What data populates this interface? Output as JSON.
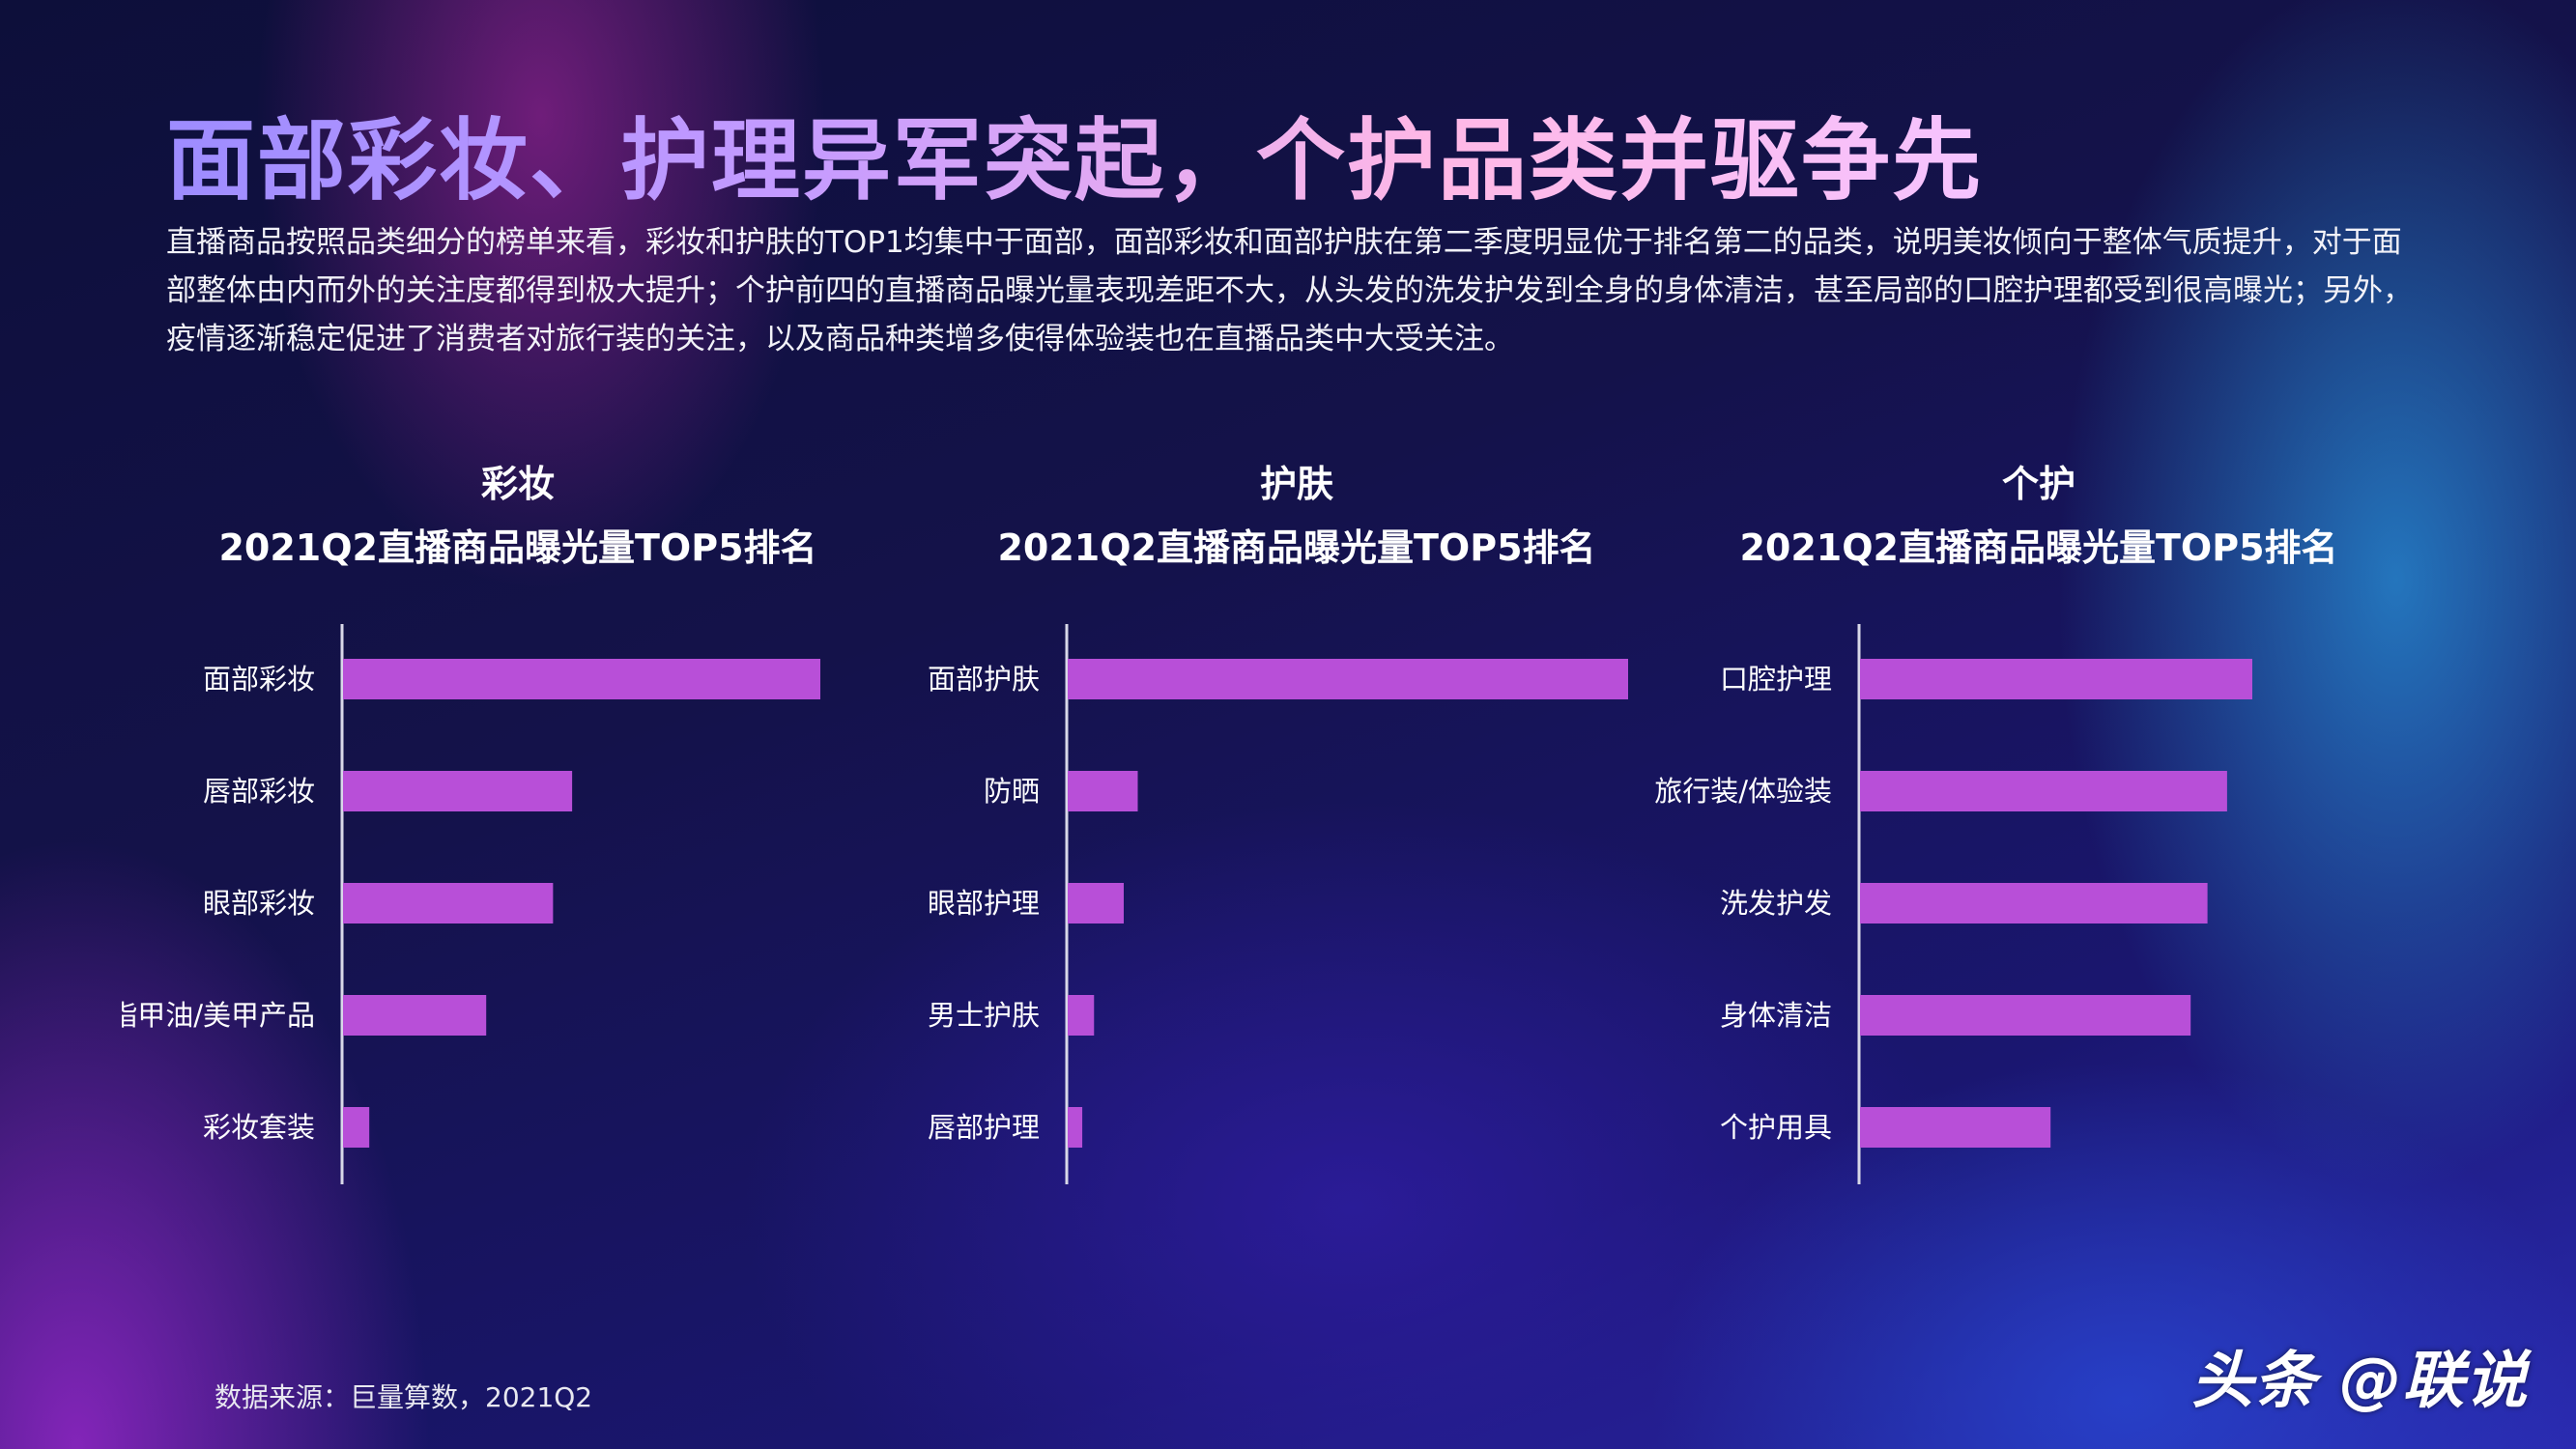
{
  "title": "面部彩妆、护理异军突起，个护品类并驱争先",
  "description": "直播商品按照品类细分的榜单来看，彩妆和护肤的TOP1均集中于面部，面部彩妆和面部护肤在第二季度明显优于排名第二的品类，说明美妆倾向于整体气质提升，对于面部整体由内而外的关注度都得到极大提升；个护前四的直播商品曝光量表现差距不大，从头发的洗发护发到全身的身体清洁，甚至局部的口腔护理都受到很高曝光；另外，疫情逐渐稳定促进了消费者对旅行装的关注，以及商品种类增多使得体验装也在直播品类中大受关注。",
  "source": "数据来源：巨量算数，2021Q2",
  "watermark": "头条 @联说",
  "colors": {
    "bar": "#b84fd8",
    "axis": "#d8d8e8"
  },
  "chart_data": [
    {
      "type": "bar",
      "orientation": "horizontal",
      "category_label": "彩妆",
      "title": "2021Q2直播商品曝光量TOP5排名",
      "categories": [
        "面部彩妆",
        "唇部彩妆",
        "眼部彩妆",
        "指甲油/美甲产品",
        "彩妆套装"
      ],
      "values": [
        100,
        48,
        44,
        30,
        5.5
      ],
      "xlim": [
        0,
        100
      ],
      "grid": false
    },
    {
      "type": "bar",
      "orientation": "horizontal",
      "category_label": "护肤",
      "title": "2021Q2直播商品曝光量TOP5排名",
      "categories": [
        "面部护肤",
        "防晒",
        "眼部护理",
        "男士护肤",
        "唇部护理"
      ],
      "values": [
        100,
        12.5,
        10,
        4.7,
        2.6
      ],
      "xlim": [
        0,
        100
      ],
      "grid": false
    },
    {
      "type": "bar",
      "orientation": "horizontal",
      "category_label": "个护",
      "title": "2021Q2直播商品曝光量TOP5排名",
      "categories": [
        "口腔护理",
        "旅行装/体验装",
        "洗发护发",
        "身体清洁",
        "个护用具"
      ],
      "values": [
        70,
        65.5,
        62,
        59,
        34
      ],
      "xlim": [
        0,
        100
      ],
      "grid": false
    }
  ]
}
